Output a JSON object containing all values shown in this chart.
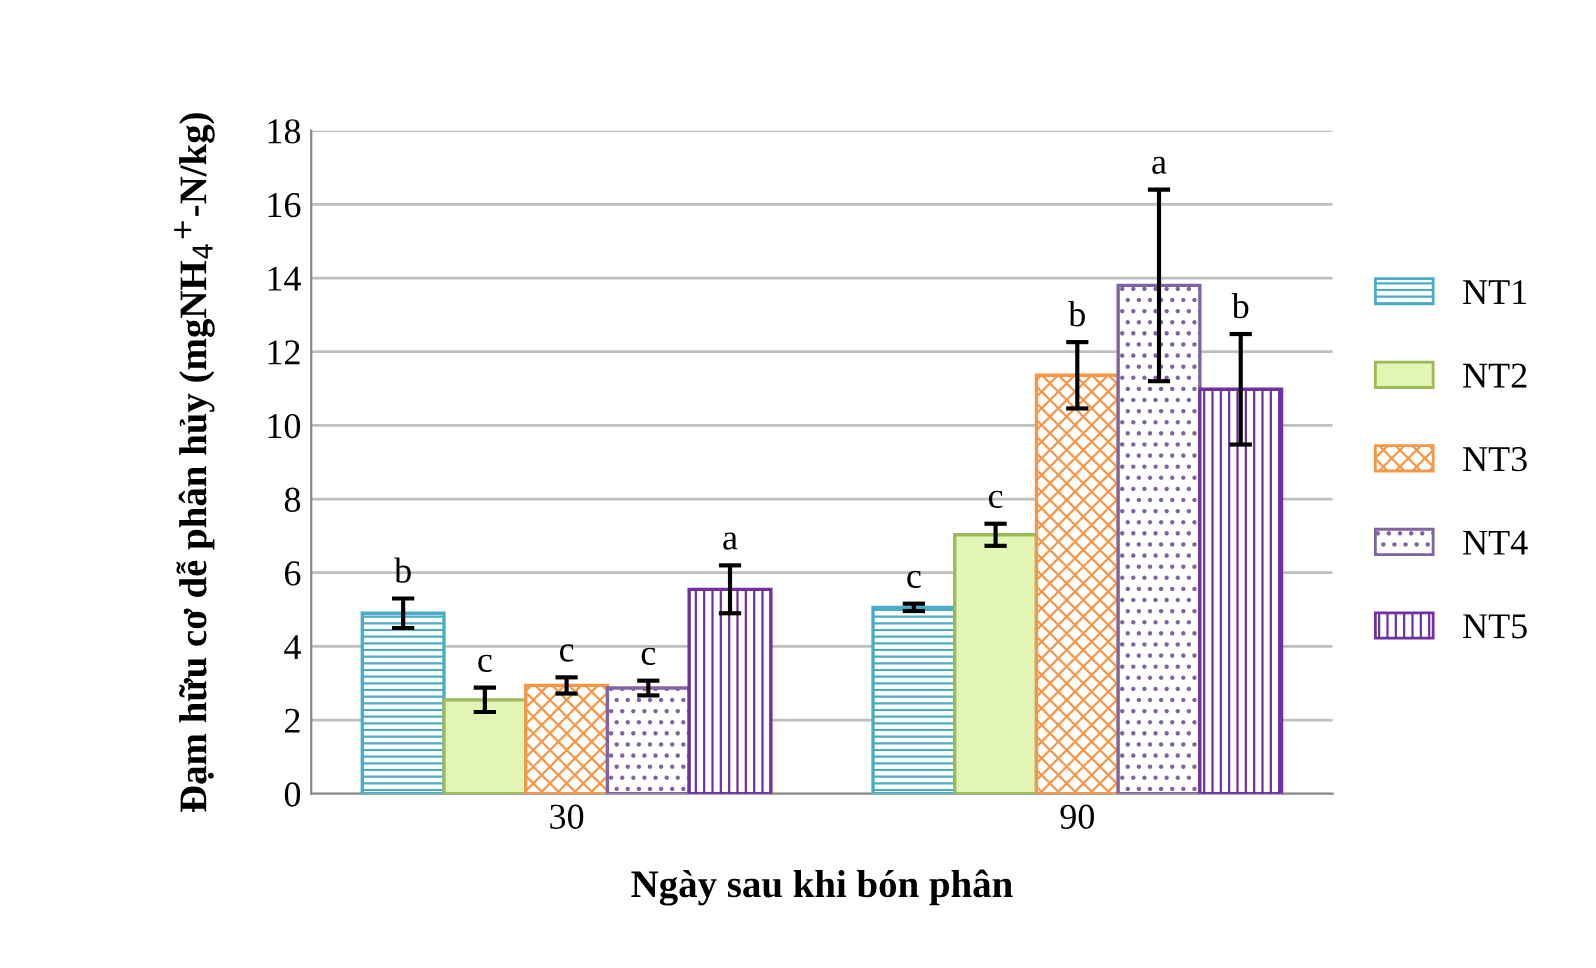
{
  "chart_data": {
    "type": "bar",
    "xlabel": "Ngày sau khi bón phân",
    "ylabel": "Đạm hữu cơ dễ phân hủy (mgNH$_{4}$$^{+}$-N/kg)",
    "categories": [
      "30",
      "90"
    ],
    "series": [
      {
        "name": "NT1",
        "color": "#4bacc6",
        "values": [
          4.9,
          5.06
        ],
        "errors": [
          0.4,
          0.1
        ]
      },
      {
        "name": "NT2",
        "color": "#9bbb59",
        "values": [
          2.55,
          7.03
        ],
        "errors": [
          0.33,
          0.3
        ]
      },
      {
        "name": "NT3",
        "color": "#f79646",
        "values": [
          2.94,
          11.36
        ],
        "errors": [
          0.22,
          0.9
        ]
      },
      {
        "name": "NT4",
        "color": "#8064a2",
        "values": [
          2.87,
          13.8
        ],
        "errors": [
          0.2,
          2.6
        ]
      },
      {
        "name": "NT5",
        "color": "#7030a0",
        "values": [
          5.55,
          10.98
        ],
        "errors": [
          0.65,
          1.5
        ]
      }
    ],
    "annotations": [
      "b",
      "c",
      "c",
      "c",
      "a",
      "c",
      "c",
      "b",
      "a",
      "b"
    ],
    "ylim": [
      0,
      18
    ],
    "yticks": [
      0,
      2,
      4,
      6,
      8,
      10,
      12,
      14,
      16,
      18
    ],
    "grid": "y",
    "legend": "right"
  }
}
